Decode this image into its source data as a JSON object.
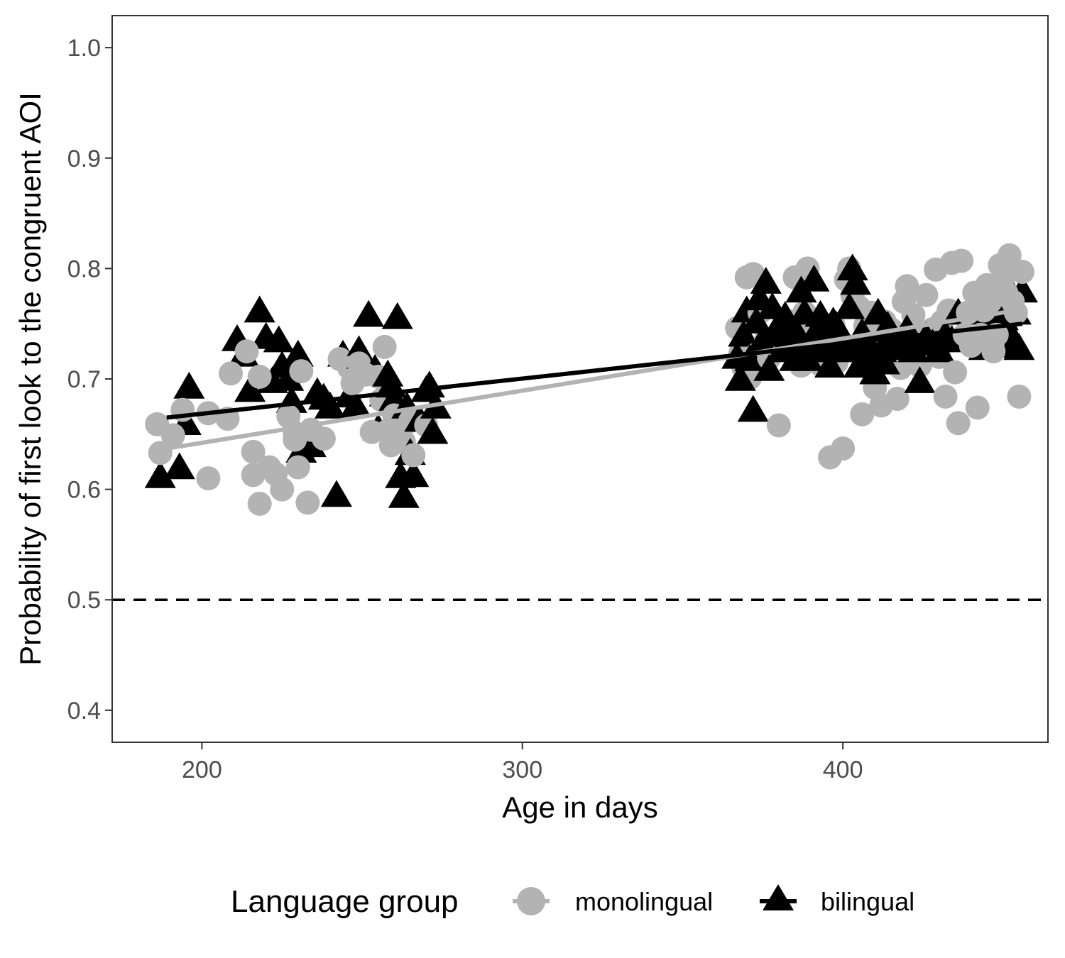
{
  "chart_data": {
    "type": "scatter",
    "xlabel": "Age in days",
    "ylabel": "Probability of first look to the congruent AOI",
    "xlim": [
      172,
      464
    ],
    "ylim": [
      0.371,
      1.029
    ],
    "xticks": [
      200,
      300,
      400
    ],
    "yticks": [
      0.4,
      0.5,
      0.6,
      0.7,
      0.8,
      0.9,
      1.0
    ],
    "ytick_labels": [
      "0.4",
      "0.5",
      "0.6",
      "0.7",
      "0.8",
      "0.9",
      "1.0"
    ],
    "xtick_labels": [
      "200",
      "300",
      "400"
    ],
    "grid": false,
    "reference_line": {
      "y": 0.5,
      "style": "dashed",
      "color": "#000000"
    },
    "legend": {
      "title": "Language group",
      "placement": "bottom",
      "entries": [
        {
          "label": "monolingual",
          "marker": "circle",
          "color": "#b3b3b3"
        },
        {
          "label": "bilingual",
          "marker": "triangle",
          "color": "#000000"
        }
      ]
    },
    "series": [
      {
        "name": "monolingual",
        "marker": "circle",
        "color": "#b3b3b3",
        "fit": {
          "x": [
            189,
            456
          ],
          "y": [
            0.637,
            0.763
          ]
        },
        "points": [
          [
            186,
            0.659
          ],
          [
            187,
            0.633
          ],
          [
            191,
            0.649
          ],
          [
            194,
            0.672
          ],
          [
            202,
            0.669
          ],
          [
            202,
            0.61
          ],
          [
            208,
            0.664
          ],
          [
            209,
            0.705
          ],
          [
            214,
            0.725
          ],
          [
            216,
            0.634
          ],
          [
            216,
            0.613
          ],
          [
            218,
            0.702
          ],
          [
            218,
            0.587
          ],
          [
            221,
            0.62
          ],
          [
            223,
            0.614
          ],
          [
            225,
            0.6
          ],
          [
            227,
            0.666
          ],
          [
            229,
            0.651
          ],
          [
            229,
            0.645
          ],
          [
            230,
            0.62
          ],
          [
            231,
            0.707
          ],
          [
            233,
            0.588
          ],
          [
            234,
            0.654
          ],
          [
            238,
            0.646
          ],
          [
            243,
            0.718
          ],
          [
            246,
            0.71
          ],
          [
            247,
            0.696
          ],
          [
            249,
            0.714
          ],
          [
            251,
            0.704
          ],
          [
            253,
            0.652
          ],
          [
            255,
            0.702
          ],
          [
            256,
            0.681
          ],
          [
            257,
            0.729
          ],
          [
            258,
            0.653
          ],
          [
            259,
            0.64
          ],
          [
            260,
            0.667
          ],
          [
            262,
            0.66
          ],
          [
            263,
            0.643
          ],
          [
            265,
            0.662
          ],
          [
            266,
            0.631
          ],
          [
            270,
            0.658
          ],
          [
            367,
            0.746
          ],
          [
            368,
            0.723
          ],
          [
            369,
            0.71
          ],
          [
            370,
            0.792
          ],
          [
            371,
            0.701
          ],
          [
            372,
            0.795
          ],
          [
            373,
            0.722
          ],
          [
            374,
            0.76
          ],
          [
            376,
            0.735
          ],
          [
            377,
            0.719
          ],
          [
            378,
            0.731
          ],
          [
            380,
            0.658
          ],
          [
            382,
            0.727
          ],
          [
            384,
            0.752
          ],
          [
            385,
            0.792
          ],
          [
            386,
            0.741
          ],
          [
            387,
            0.712
          ],
          [
            388,
            0.76
          ],
          [
            389,
            0.8
          ],
          [
            390,
            0.755
          ],
          [
            391,
            0.727
          ],
          [
            392,
            0.735
          ],
          [
            393,
            0.713
          ],
          [
            395,
            0.741
          ],
          [
            396,
            0.629
          ],
          [
            397,
            0.749
          ],
          [
            398,
            0.715
          ],
          [
            399,
            0.73
          ],
          [
            400,
            0.637
          ],
          [
            401,
            0.79
          ],
          [
            402,
            0.8
          ],
          [
            403,
            0.775
          ],
          [
            404,
            0.728
          ],
          [
            405,
            0.765
          ],
          [
            406,
            0.668
          ],
          [
            407,
            0.748
          ],
          [
            408,
            0.755
          ],
          [
            409,
            0.76
          ],
          [
            410,
            0.692
          ],
          [
            411,
            0.735
          ],
          [
            412,
            0.676
          ],
          [
            413,
            0.752
          ],
          [
            414,
            0.744
          ],
          [
            415,
            0.745
          ],
          [
            416,
            0.72
          ],
          [
            417,
            0.682
          ],
          [
            418,
            0.71
          ],
          [
            419,
            0.77
          ],
          [
            420,
            0.784
          ],
          [
            421,
            0.735
          ],
          [
            422,
            0.758
          ],
          [
            423,
            0.716
          ],
          [
            424,
            0.712
          ],
          [
            425,
            0.74
          ],
          [
            426,
            0.776
          ],
          [
            427,
            0.73
          ],
          [
            428,
            0.745
          ],
          [
            429,
            0.799
          ],
          [
            430,
            0.72
          ],
          [
            431,
            0.752
          ],
          [
            432,
            0.684
          ],
          [
            433,
            0.762
          ],
          [
            434,
            0.805
          ],
          [
            435,
            0.706
          ],
          [
            436,
            0.66
          ],
          [
            437,
            0.807
          ],
          [
            438,
            0.74
          ],
          [
            439,
            0.76
          ],
          [
            440,
            0.73
          ],
          [
            441,
            0.778
          ],
          [
            442,
            0.674
          ],
          [
            443,
            0.74
          ],
          [
            444,
            0.762
          ],
          [
            445,
            0.785
          ],
          [
            446,
            0.77
          ],
          [
            447,
            0.725
          ],
          [
            448,
            0.74
          ],
          [
            449,
            0.803
          ],
          [
            450,
            0.792
          ],
          [
            451,
            0.778
          ],
          [
            452,
            0.812
          ],
          [
            453,
            0.77
          ],
          [
            454,
            0.76
          ],
          [
            455,
            0.684
          ],
          [
            456,
            0.797
          ]
        ]
      },
      {
        "name": "bilingual",
        "marker": "triangle",
        "color": "#000000",
        "fit": {
          "x": [
            189,
            456
          ],
          "y": [
            0.665,
            0.75
          ]
        },
        "points": [
          [
            187,
            0.612
          ],
          [
            193,
            0.62
          ],
          [
            195,
            0.66
          ],
          [
            196,
            0.693
          ],
          [
            211,
            0.736
          ],
          [
            213,
            0.722
          ],
          [
            215,
            0.69
          ],
          [
            218,
            0.762
          ],
          [
            220,
            0.738
          ],
          [
            222,
            0.698
          ],
          [
            224,
            0.735
          ],
          [
            225,
            0.712
          ],
          [
            227,
            0.7
          ],
          [
            228,
            0.68
          ],
          [
            230,
            0.722
          ],
          [
            231,
            0.635
          ],
          [
            232,
            0.65
          ],
          [
            234,
            0.64
          ],
          [
            236,
            0.688
          ],
          [
            238,
            0.683
          ],
          [
            240,
            0.675
          ],
          [
            242,
            0.595
          ],
          [
            244,
            0.722
          ],
          [
            246,
            0.685
          ],
          [
            248,
            0.676
          ],
          [
            249,
            0.726
          ],
          [
            250,
            0.72
          ],
          [
            252,
            0.758
          ],
          [
            254,
            0.709
          ],
          [
            255,
            0.655
          ],
          [
            257,
            0.686
          ],
          [
            258,
            0.704
          ],
          [
            259,
            0.694
          ],
          [
            260,
            0.682
          ],
          [
            261,
            0.756
          ],
          [
            262,
            0.612
          ],
          [
            263,
            0.594
          ],
          [
            264,
            0.675
          ],
          [
            265,
            0.633
          ],
          [
            266,
            0.613
          ],
          [
            268,
            0.663
          ],
          [
            270,
            0.69
          ],
          [
            271,
            0.694
          ],
          [
            272,
            0.652
          ],
          [
            273,
            0.675
          ],
          [
            367,
            0.72
          ],
          [
            368,
            0.7
          ],
          [
            369,
            0.74
          ],
          [
            370,
            0.762
          ],
          [
            371,
            0.718
          ],
          [
            372,
            0.672
          ],
          [
            373,
            0.752
          ],
          [
            374,
            0.773
          ],
          [
            375,
            0.735
          ],
          [
            376,
            0.788
          ],
          [
            377,
            0.709
          ],
          [
            378,
            0.765
          ],
          [
            379,
            0.74
          ],
          [
            380,
            0.749
          ],
          [
            381,
            0.726
          ],
          [
            382,
            0.757
          ],
          [
            383,
            0.732
          ],
          [
            384,
            0.745
          ],
          [
            385,
            0.718
          ],
          [
            386,
            0.74
          ],
          [
            387,
            0.78
          ],
          [
            388,
            0.76
          ],
          [
            389,
            0.718
          ],
          [
            390,
            0.728
          ],
          [
            391,
            0.79
          ],
          [
            392,
            0.745
          ],
          [
            393,
            0.758
          ],
          [
            394,
            0.726
          ],
          [
            395,
            0.736
          ],
          [
            396,
            0.712
          ],
          [
            397,
            0.752
          ],
          [
            398,
            0.748
          ],
          [
            399,
            0.74
          ],
          [
            400,
            0.733
          ],
          [
            401,
            0.726
          ],
          [
            402,
            0.765
          ],
          [
            403,
            0.8
          ],
          [
            404,
            0.787
          ],
          [
            405,
            0.712
          ],
          [
            406,
            0.742
          ],
          [
            407,
            0.735
          ],
          [
            408,
            0.728
          ],
          [
            409,
            0.718
          ],
          [
            410,
            0.706
          ],
          [
            411,
            0.76
          ],
          [
            412,
            0.726
          ],
          [
            413,
            0.715
          ],
          [
            414,
            0.748
          ],
          [
            415,
            0.74
          ],
          [
            416,
            0.728
          ],
          [
            418,
            0.735
          ],
          [
            420,
            0.745
          ],
          [
            422,
            0.726
          ],
          [
            424,
            0.698
          ],
          [
            426,
            0.738
          ],
          [
            428,
            0.732
          ],
          [
            430,
            0.726
          ],
          [
            432,
            0.74
          ],
          [
            434,
            0.735
          ],
          [
            436,
            0.76
          ],
          [
            438,
            0.745
          ],
          [
            440,
            0.76
          ],
          [
            442,
            0.735
          ],
          [
            444,
            0.728
          ],
          [
            446,
            0.77
          ],
          [
            448,
            0.758
          ],
          [
            450,
            0.755
          ],
          [
            451,
            0.786
          ],
          [
            452,
            0.742
          ],
          [
            453,
            0.73
          ],
          [
            454,
            0.76
          ],
          [
            455,
            0.728
          ],
          [
            456,
            0.78
          ]
        ]
      }
    ]
  }
}
